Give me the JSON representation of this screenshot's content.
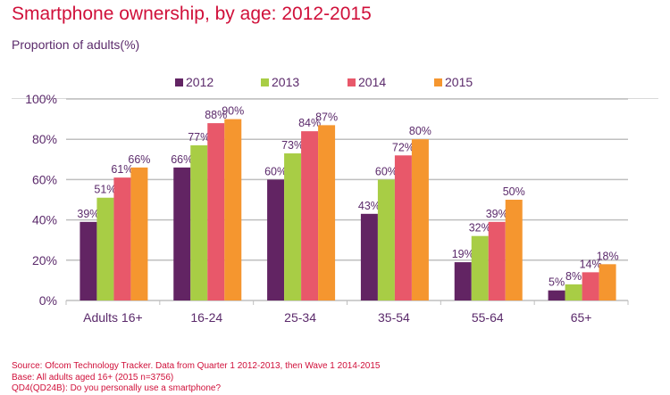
{
  "chart_data": {
    "type": "bar",
    "title": "Smartphone ownership, by age: 2012-2015",
    "subtitle": "Proportion of adults(%)",
    "xlabel": "",
    "ylabel": "",
    "categories": [
      "Adults 16+",
      "16-24",
      "25-34",
      "35-54",
      "55-64",
      "65+"
    ],
    "series": [
      {
        "name": "2012",
        "color": "#622463",
        "values": [
          39,
          66,
          60,
          43,
          19,
          5
        ]
      },
      {
        "name": "2013",
        "color": "#a8cd45",
        "values": [
          51,
          77,
          73,
          60,
          32,
          8
        ]
      },
      {
        "name": "2014",
        "color": "#e8586a",
        "values": [
          61,
          88,
          84,
          72,
          39,
          14
        ]
      },
      {
        "name": "2015",
        "color": "#f5962f",
        "values": [
          66,
          90,
          87,
          80,
          50,
          18
        ]
      }
    ],
    "ylim": [
      0,
      100
    ],
    "yticks": [
      0,
      20,
      40,
      60,
      80,
      100
    ],
    "ytick_labels": [
      "0%",
      "20%",
      "40%",
      "60%",
      "80%",
      "100%"
    ],
    "value_suffix": "%",
    "grid": true,
    "legend_position": "top"
  },
  "footer": {
    "source": "Source: Ofcom Technology Tracker. Data from Quarter 1 2012-2013, then Wave 1 2014-2015",
    "base": "Base: All adults aged 16+ (2015 n=3756)",
    "question": "QD4(QD24B): Do you personally use a smartphone?"
  }
}
